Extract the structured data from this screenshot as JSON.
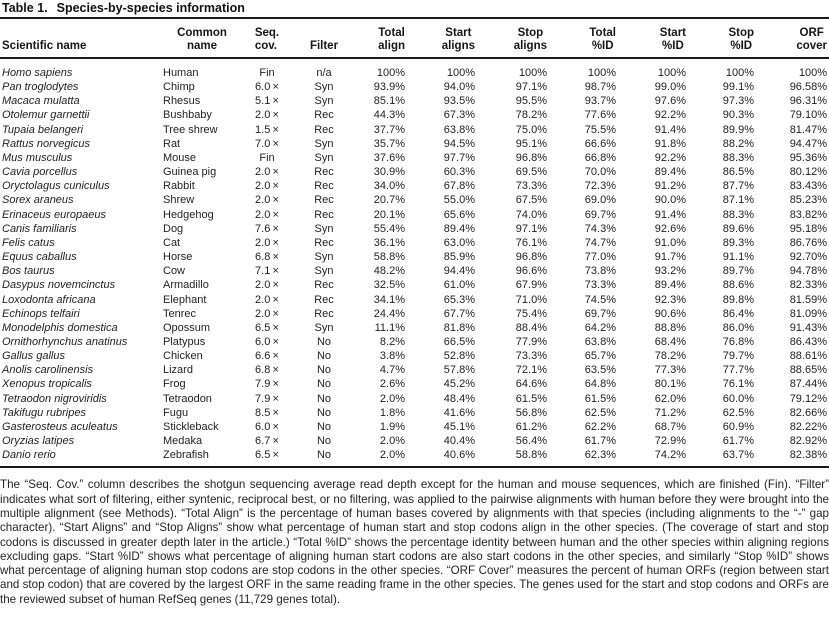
{
  "title": {
    "label": "Table 1.",
    "text": "Species-by-species information"
  },
  "table": {
    "headers": [
      {
        "id": "scientific-name",
        "lines": [
          "Scientific name"
        ]
      },
      {
        "id": "common-name",
        "lines": [
          "Common",
          "name"
        ]
      },
      {
        "id": "seq-cov",
        "lines": [
          "Seq.",
          "cov."
        ]
      },
      {
        "id": "filter",
        "lines": [
          "Filter"
        ]
      },
      {
        "id": "total-align",
        "lines": [
          "Total",
          "align"
        ]
      },
      {
        "id": "start-aligns",
        "lines": [
          "Start",
          "aligns"
        ]
      },
      {
        "id": "stop-aligns",
        "lines": [
          "Stop",
          "aligns"
        ]
      },
      {
        "id": "total-pct-id",
        "lines": [
          "Total",
          "%ID"
        ]
      },
      {
        "id": "start-pct-id",
        "lines": [
          "Start",
          "%ID"
        ]
      },
      {
        "id": "stop-pct-id",
        "lines": [
          "Stop",
          "%ID"
        ]
      },
      {
        "id": "orf-cover",
        "lines": [
          "ORF",
          "cover"
        ]
      }
    ],
    "rows": [
      [
        "Homo sapiens",
        "Human",
        "Fin",
        "n/a",
        "100%",
        "100%",
        "100%",
        "100%",
        "100%",
        "100%",
        "100%"
      ],
      [
        "Pan troglodytes",
        "Chimp",
        "6.0 ×",
        "Syn",
        "93.9%",
        "94.0%",
        "97.1%",
        "98.7%",
        "99.0%",
        "99.1%",
        "96.58%"
      ],
      [
        "Macaca mulatta",
        "Rhesus",
        "5.1 ×",
        "Syn",
        "85.1%",
        "93.5%",
        "95.5%",
        "93.7%",
        "97.6%",
        "97.3%",
        "96.31%"
      ],
      [
        "Otolemur garnettii",
        "Bushbaby",
        "2.0 ×",
        "Rec",
        "44.3%",
        "67.3%",
        "78.2%",
        "77.6%",
        "92.2%",
        "90.3%",
        "79.10%"
      ],
      [
        "Tupaia belangeri",
        "Tree shrew",
        "1.5 ×",
        "Rec",
        "37.7%",
        "63.8%",
        "75.0%",
        "75.5%",
        "91.4%",
        "89.9%",
        "81.47%"
      ],
      [
        "Rattus norvegicus",
        "Rat",
        "7.0 ×",
        "Syn",
        "35.7%",
        "94.5%",
        "95.1%",
        "66.6%",
        "91.8%",
        "88.2%",
        "94.47%"
      ],
      [
        "Mus musculus",
        "Mouse",
        "Fin",
        "Syn",
        "37.6%",
        "97.7%",
        "96.8%",
        "66.8%",
        "92.2%",
        "88.3%",
        "95.36%"
      ],
      [
        "Cavia porcellus",
        "Guinea pig",
        "2.0 ×",
        "Rec",
        "30.9%",
        "60.3%",
        "69.5%",
        "70.0%",
        "89.4%",
        "86.5%",
        "80.12%"
      ],
      [
        "Oryctolagus cuniculus",
        "Rabbit",
        "2.0 ×",
        "Rec",
        "34.0%",
        "67.8%",
        "73.3%",
        "72.3%",
        "91.2%",
        "87.7%",
        "83.43%"
      ],
      [
        "Sorex araneus",
        "Shrew",
        "2.0 ×",
        "Rec",
        "20.7%",
        "55.0%",
        "67.5%",
        "69.0%",
        "90.0%",
        "87.1%",
        "85.23%"
      ],
      [
        "Erinaceus europaeus",
        "Hedgehog",
        "2.0 ×",
        "Rec",
        "20.1%",
        "65.6%",
        "74.0%",
        "69.7%",
        "91.4%",
        "88.3%",
        "83.82%"
      ],
      [
        "Canis familiaris",
        "Dog",
        "7.6 ×",
        "Syn",
        "55.4%",
        "89.4%",
        "97.1%",
        "74.3%",
        "92.6%",
        "89.6%",
        "95.18%"
      ],
      [
        "Felis catus",
        "Cat",
        "2.0 ×",
        "Rec",
        "36.1%",
        "63.0%",
        "76.1%",
        "74.7%",
        "91.0%",
        "89.3%",
        "86.76%"
      ],
      [
        "Equus caballus",
        "Horse",
        "6.8 ×",
        "Syn",
        "58.8%",
        "85.9%",
        "96.8%",
        "77.0%",
        "91.7%",
        "91.1%",
        "92.70%"
      ],
      [
        "Bos taurus",
        "Cow",
        "7.1 ×",
        "Syn",
        "48.2%",
        "94.4%",
        "96.6%",
        "73.8%",
        "93.2%",
        "89.7%",
        "94.78%"
      ],
      [
        "Dasypus novemcinctus",
        "Armadillo",
        "2.0 ×",
        "Rec",
        "32.5%",
        "61.0%",
        "67.9%",
        "73.3%",
        "89.4%",
        "88.6%",
        "82.33%"
      ],
      [
        "Loxodonta africana",
        "Elephant",
        "2.0 ×",
        "Rec",
        "34.1%",
        "65.3%",
        "71.0%",
        "74.5%",
        "92.3%",
        "89.8%",
        "81.59%"
      ],
      [
        "Echinops telfairi",
        "Tenrec",
        "2.0 ×",
        "Rec",
        "24.4%",
        "67.7%",
        "75.4%",
        "69.7%",
        "90.6%",
        "86.4%",
        "81.09%"
      ],
      [
        "Monodelphis domestica",
        "Opossum",
        "6.5 ×",
        "Syn",
        "11.1%",
        "81.8%",
        "88.4%",
        "64.2%",
        "88.8%",
        "86.0%",
        "91.43%"
      ],
      [
        "Ornithorhynchus anatinus",
        "Platypus",
        "6.0 ×",
        "No",
        "8.2%",
        "66.5%",
        "77.9%",
        "63.8%",
        "68.4%",
        "76.8%",
        "86.43%"
      ],
      [
        "Gallus gallus",
        "Chicken",
        "6.6 ×",
        "No",
        "3.8%",
        "52.8%",
        "73.3%",
        "65.7%",
        "78.2%",
        "79.7%",
        "88.61%"
      ],
      [
        "Anolis carolinensis",
        "Lizard",
        "6.8 ×",
        "No",
        "4.7%",
        "57.8%",
        "72.1%",
        "63.5%",
        "77.3%",
        "77.7%",
        "88.65%"
      ],
      [
        "Xenopus tropicalis",
        "Frog",
        "7.9 ×",
        "No",
        "2.6%",
        "45.2%",
        "64.6%",
        "64.8%",
        "80.1%",
        "76.1%",
        "87.44%"
      ],
      [
        "Tetraodon nigroviridis",
        "Tetraodon",
        "7.9 ×",
        "No",
        "2.0%",
        "48.4%",
        "61.5%",
        "61.5%",
        "62.0%",
        "60.0%",
        "79.12%"
      ],
      [
        "Takifugu rubripes",
        "Fugu",
        "8.5 ×",
        "No",
        "1.8%",
        "41.6%",
        "56.8%",
        "62.5%",
        "71.2%",
        "62.5%",
        "82.66%"
      ],
      [
        "Gasterosteus aculeatus",
        "Stickleback",
        "6.0 ×",
        "No",
        "1.9%",
        "45.1%",
        "61.2%",
        "62.2%",
        "68.7%",
        "60.9%",
        "82.22%"
      ],
      [
        "Oryzias latipes",
        "Medaka",
        "6.7 ×",
        "No",
        "2.0%",
        "40.4%",
        "56.4%",
        "61.7%",
        "72.9%",
        "61.7%",
        "82.92%"
      ],
      [
        "Danio rerio",
        "Zebrafish",
        "6.5 ×",
        "No",
        "2.0%",
        "40.6%",
        "58.8%",
        "62.3%",
        "74.2%",
        "63.7%",
        "82.38%"
      ]
    ]
  },
  "footnote": "The “Seq. Cov.” column describes the shotgun sequencing average read depth except for the human and mouse sequences, which are finished (Fin). “Filter” indicates what sort of filtering, either syntenic, reciprocal best, or no filtering, was applied to the pairwise alignments with human before they were brought into the multiple alignment (see Methods). “Total Align” is the percentage of human bases covered by alignments with that species (including alignments to the “-” gap character). “Start Aligns” and “Stop Aligns” show what percentage of human start and stop codons align in the other species. (The coverage of start and stop codons is discussed in greater depth later in the article.) “Total %ID” shows the percentage identity between human and the other species within aligning regions excluding gaps. “Start %ID” shows what percentage of aligning human start codons are also start codons in the other species, and similarly “Stop %ID” shows what percentage of aligning human stop codons are stop codons in the other species. “ORF Cover” measures the percent of human ORFs (region between start and stop codon) that are covered by the largest ORF in the same reading frame in the other species. The genes used for the start and stop codons and ORFs are the reviewed subset of human RefSeq genes (11,729 genes total)."
}
